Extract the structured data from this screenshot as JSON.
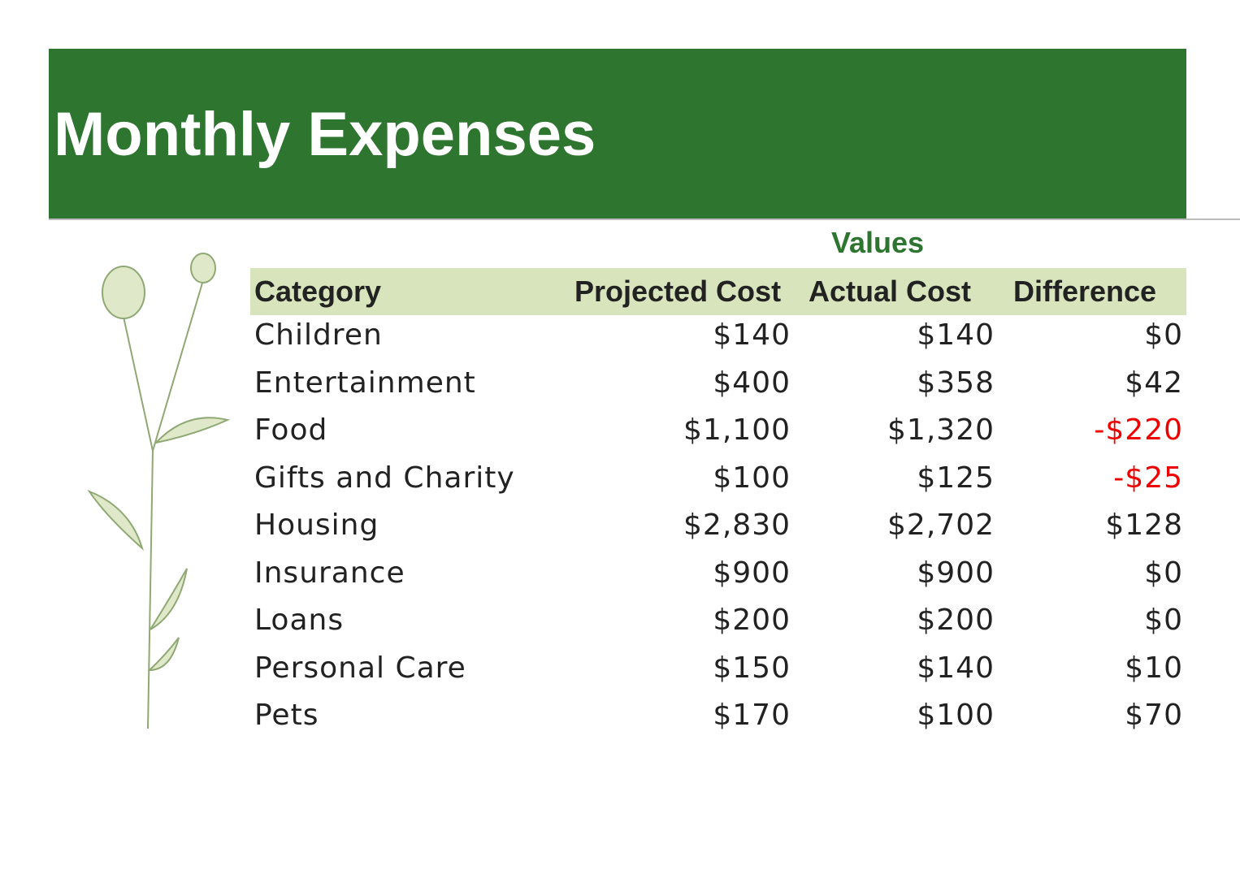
{
  "header": {
    "title": "Monthly Expenses"
  },
  "table": {
    "group_label": "Values",
    "columns": [
      "Category",
      "Projected Cost",
      "Actual Cost",
      "Difference"
    ],
    "rows": [
      [
        "Children",
        "$140",
        "$140",
        "$0"
      ],
      [
        "Entertainment",
        "$400",
        "$358",
        "$42"
      ],
      [
        "Food",
        "$1,100",
        "$1,320",
        "-$220"
      ],
      [
        "Gifts and Charity",
        "$100",
        "$125",
        "-$25"
      ],
      [
        "Housing",
        "$2,830",
        "$2,702",
        "$128"
      ],
      [
        "Insurance",
        "$900",
        "$900",
        "$0"
      ],
      [
        "Loans",
        "$200",
        "$200",
        "$0"
      ],
      [
        "Personal Care",
        "$150",
        "$140",
        "$10"
      ],
      [
        "Pets",
        "$170",
        "$100",
        "$70"
      ]
    ]
  }
}
